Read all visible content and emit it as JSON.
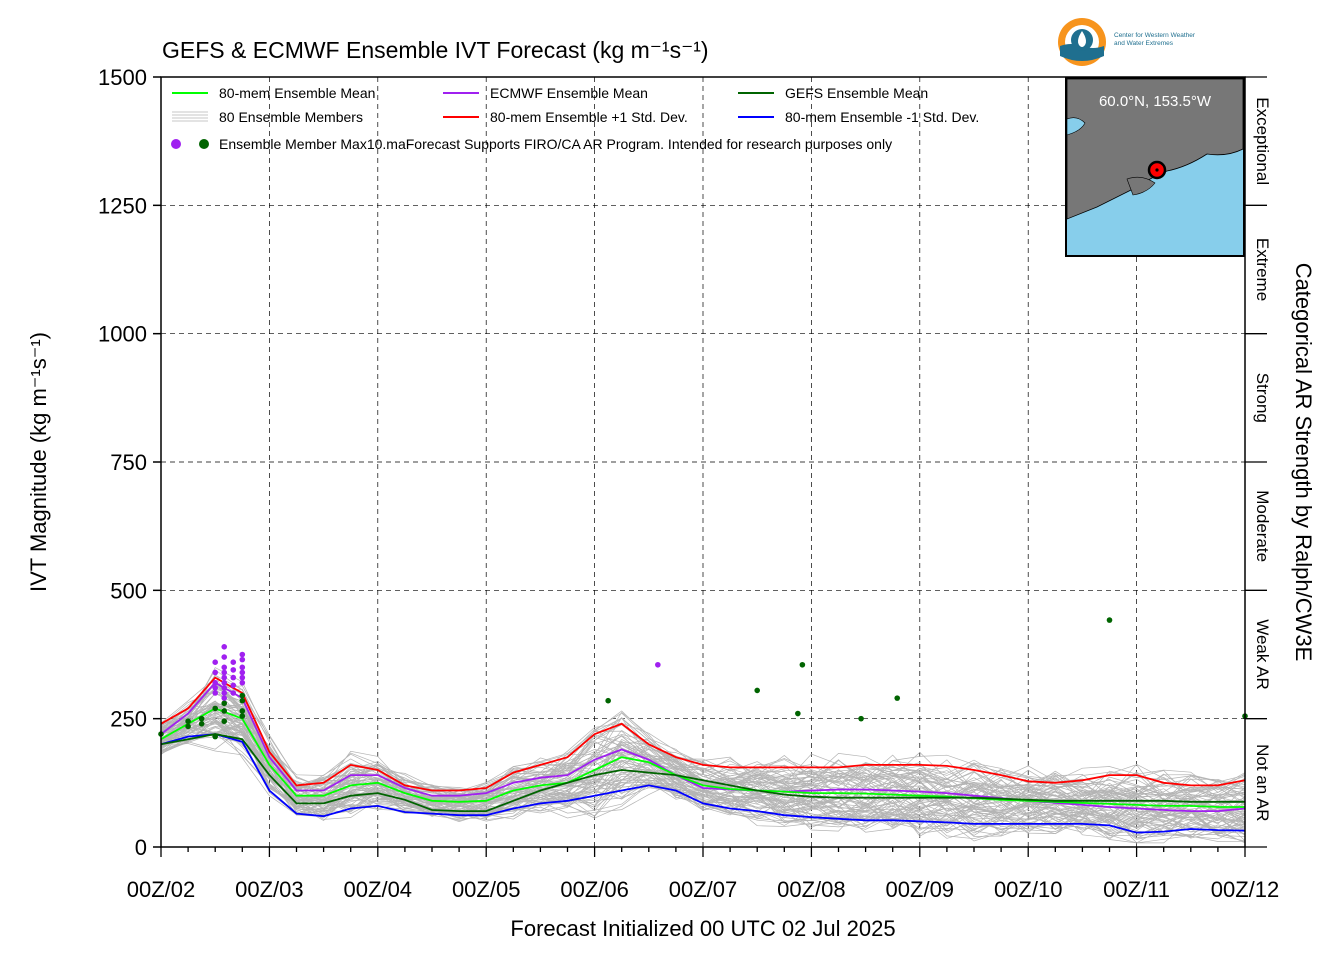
{
  "chart_data": {
    "type": "line",
    "title": "GEFS & ECMWF Ensemble IVT Forecast (kg m⁻¹s⁻¹)",
    "xlabel": "Forecast Initialized 00 UTC 02 Jul 2025",
    "ylabel": "IVT Magnitude (kg m⁻¹s⁻¹)",
    "right_ylabel": "Categorical AR Strength by Ralph/CW3E",
    "ylim": [
      0,
      1500
    ],
    "xlim": [
      0,
      240
    ],
    "yticks": [
      0,
      250,
      500,
      750,
      1000,
      1250,
      1500
    ],
    "xtick_labels": [
      "00Z/02",
      "00Z/03",
      "00Z/04",
      "00Z/05",
      "00Z/06",
      "00Z/07",
      "00Z/08",
      "00Z/09",
      "00Z/10",
      "00Z/11",
      "00Z/12"
    ],
    "xtick_hours": [
      0,
      24,
      48,
      72,
      96,
      120,
      144,
      168,
      192,
      216,
      240
    ],
    "grid": true,
    "categories": [
      {
        "label": "Not an AR",
        "range": [
          0,
          250
        ]
      },
      {
        "label": "Weak AR",
        "range": [
          250,
          500
        ]
      },
      {
        "label": "Moderate",
        "range": [
          500,
          750
        ]
      },
      {
        "label": "Strong",
        "range": [
          750,
          1000
        ]
      },
      {
        "label": "Extreme",
        "range": [
          1000,
          1250
        ]
      },
      {
        "label": "Exceptional",
        "range": [
          1250,
          1500
        ]
      }
    ],
    "x": [
      0,
      6,
      12,
      18,
      24,
      30,
      36,
      42,
      48,
      54,
      60,
      66,
      72,
      78,
      84,
      90,
      96,
      102,
      108,
      114,
      120,
      126,
      132,
      138,
      144,
      150,
      156,
      162,
      168,
      174,
      180,
      186,
      192,
      198,
      204,
      210,
      216,
      222,
      228,
      234,
      240
    ],
    "series": [
      {
        "name": "80-mem Ensemble Mean",
        "color": "#00ff00",
        "values": [
          210,
          240,
          270,
          250,
          160,
          100,
          100,
          120,
          125,
          105,
          90,
          88,
          90,
          110,
          120,
          125,
          150,
          175,
          165,
          140,
          120,
          113,
          110,
          108,
          105,
          105,
          104,
          102,
          100,
          98,
          95,
          92,
          90,
          88,
          86,
          84,
          82,
          80,
          80,
          78,
          78
        ]
      },
      {
        "name": "ECMWF Ensemble Mean",
        "color": "#a020f0",
        "values": [
          220,
          260,
          320,
          290,
          175,
          110,
          110,
          140,
          140,
          115,
          100,
          100,
          105,
          125,
          135,
          140,
          170,
          190,
          170,
          140,
          115,
          112,
          110,
          108,
          110,
          112,
          112,
          110,
          108,
          105,
          100,
          95,
          90,
          86,
          82,
          78,
          75,
          72,
          70,
          70,
          75
        ]
      },
      {
        "name": "GEFS Ensemble Mean",
        "color": "#006400",
        "values": [
          200,
          210,
          220,
          210,
          140,
          85,
          85,
          100,
          105,
          92,
          72,
          70,
          70,
          90,
          110,
          125,
          140,
          150,
          145,
          140,
          130,
          120,
          110,
          102,
          98,
          96,
          96,
          96,
          96,
          96,
          96,
          94,
          92,
          90,
          90,
          90,
          90,
          90,
          88,
          88,
          88
        ]
      },
      {
        "name": "80-mem Ensemble +1 Std. Dev.",
        "color": "#ff0000",
        "values": [
          240,
          270,
          330,
          300,
          185,
          120,
          125,
          160,
          150,
          120,
          110,
          110,
          115,
          145,
          160,
          175,
          220,
          240,
          200,
          175,
          160,
          155,
          155,
          155,
          155,
          155,
          160,
          160,
          160,
          158,
          150,
          140,
          128,
          125,
          130,
          140,
          140,
          125,
          120,
          120,
          130
        ]
      },
      {
        "name": "80-mem Ensemble -1 Std. Dev.",
        "color": "#0000ff",
        "values": [
          200,
          215,
          220,
          205,
          110,
          65,
          60,
          75,
          80,
          68,
          65,
          62,
          62,
          75,
          85,
          90,
          100,
          110,
          120,
          110,
          85,
          75,
          70,
          62,
          58,
          55,
          52,
          52,
          50,
          48,
          45,
          45,
          45,
          45,
          45,
          42,
          28,
          30,
          35,
          33,
          32
        ]
      }
    ],
    "member_series_name": "80 Ensemble Members",
    "member_color": "#b4b4b4",
    "max_dots": [
      {
        "group": "ECMWF",
        "color": "#a020f0",
        "hours": [
          12,
          12,
          12,
          12,
          12,
          14,
          14,
          14,
          14,
          14,
          14,
          14,
          14,
          14,
          16,
          16,
          16,
          16,
          16,
          18,
          18,
          18,
          18,
          18,
          18,
          110
        ],
        "values": [
          300,
          320,
          340,
          360,
          310,
          290,
          300,
          310,
          320,
          330,
          340,
          350,
          370,
          390,
          300,
          315,
          330,
          345,
          360,
          320,
          330,
          340,
          350,
          365,
          375,
          355
        ]
      },
      {
        "group": "GEFS",
        "color": "#006400",
        "hours": [
          0,
          6,
          6,
          9,
          9,
          12,
          12,
          14,
          14,
          14,
          18,
          18,
          18,
          18,
          99,
          132,
          141,
          142,
          155,
          163,
          210,
          240
        ],
        "values": [
          220,
          245,
          235,
          240,
          250,
          270,
          215,
          245,
          265,
          280,
          255,
          265,
          285,
          295,
          285,
          305,
          260,
          355,
          250,
          290,
          442,
          255
        ]
      }
    ]
  },
  "legend": {
    "items": [
      {
        "label": "80-mem Ensemble Mean",
        "color": "#00ff00"
      },
      {
        "label": "ECMWF Ensemble Mean",
        "color": "#a020f0"
      },
      {
        "label": "GEFS Ensemble Mean",
        "color": "#006400"
      },
      {
        "label": "80 Ensemble Members",
        "color": "#b4b4b4"
      },
      {
        "label": "80-mem Ensemble +1 Std. Dev.",
        "color": "#ff0000"
      },
      {
        "label": "80-mem Ensemble -1 Std. Dev.",
        "color": "#0000ff"
      }
    ],
    "dots_label": "Ensemble Member Max10.maForecast Supports FIRO/CA AR Program. Intended for research purposes only"
  },
  "logo": {
    "line1": "Center for Western Weather",
    "line2": "and Water Extremes"
  },
  "inset": {
    "location": "60.0°N, 153.5°W",
    "land_color": "#777777",
    "water_color": "#87ceeb"
  }
}
